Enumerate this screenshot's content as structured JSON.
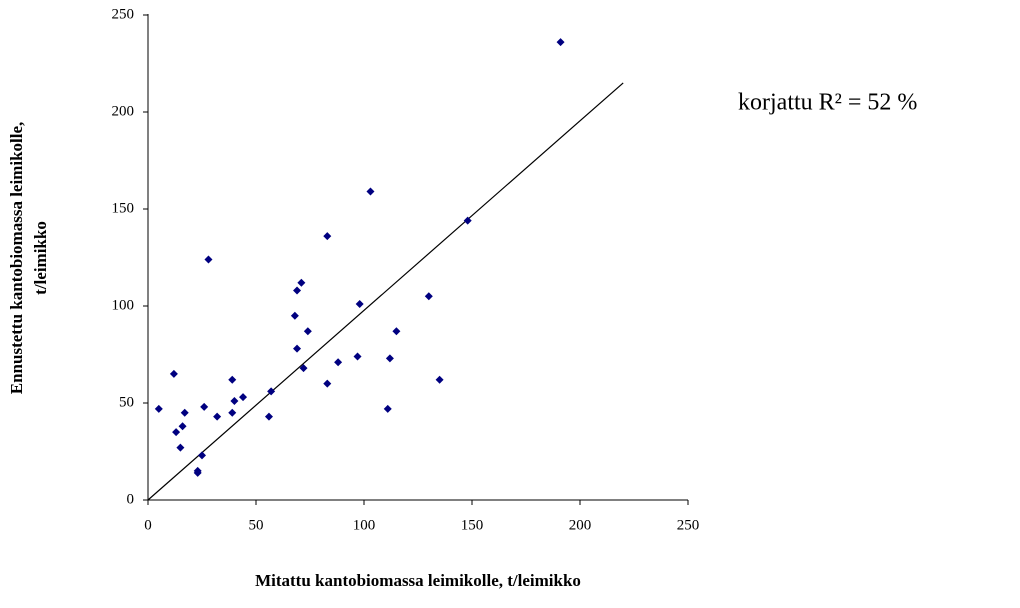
{
  "chart_data": {
    "type": "scatter",
    "xlabel": "Mitattu kantobiomassa leimikolle, t/leimikko",
    "ylabel": [
      "Ennustettu kantobiomassa leimikolle,",
      "t/leimikko"
    ],
    "annotation": "korjattu R² = 52 %",
    "xlim": [
      0,
      250
    ],
    "ylim": [
      0,
      250
    ],
    "xticks": [
      0,
      50,
      100,
      150,
      200,
      250
    ],
    "yticks": [
      0,
      50,
      100,
      150,
      200,
      250
    ],
    "series": [
      {
        "color": "#000080",
        "x": [
          191,
          103,
          148,
          83,
          28,
          71,
          69,
          98,
          130,
          68,
          74,
          115,
          69,
          97,
          112,
          88,
          72,
          12,
          39,
          135,
          83,
          44,
          40,
          57,
          26,
          5,
          111,
          17,
          39,
          32,
          56,
          16,
          13,
          15,
          25,
          23,
          23
        ],
        "values": [
          236,
          159,
          144,
          136,
          124,
          112,
          108,
          101,
          105,
          95,
          87,
          87,
          78,
          74,
          73,
          71,
          68,
          65,
          62,
          62,
          60,
          53,
          51,
          56,
          48,
          47,
          47,
          45,
          45,
          43,
          43,
          38,
          35,
          27,
          23,
          15,
          14
        ]
      }
    ],
    "line": {
      "color": "#000000",
      "x": [
        0,
        220
      ],
      "values": [
        0,
        215
      ]
    }
  }
}
